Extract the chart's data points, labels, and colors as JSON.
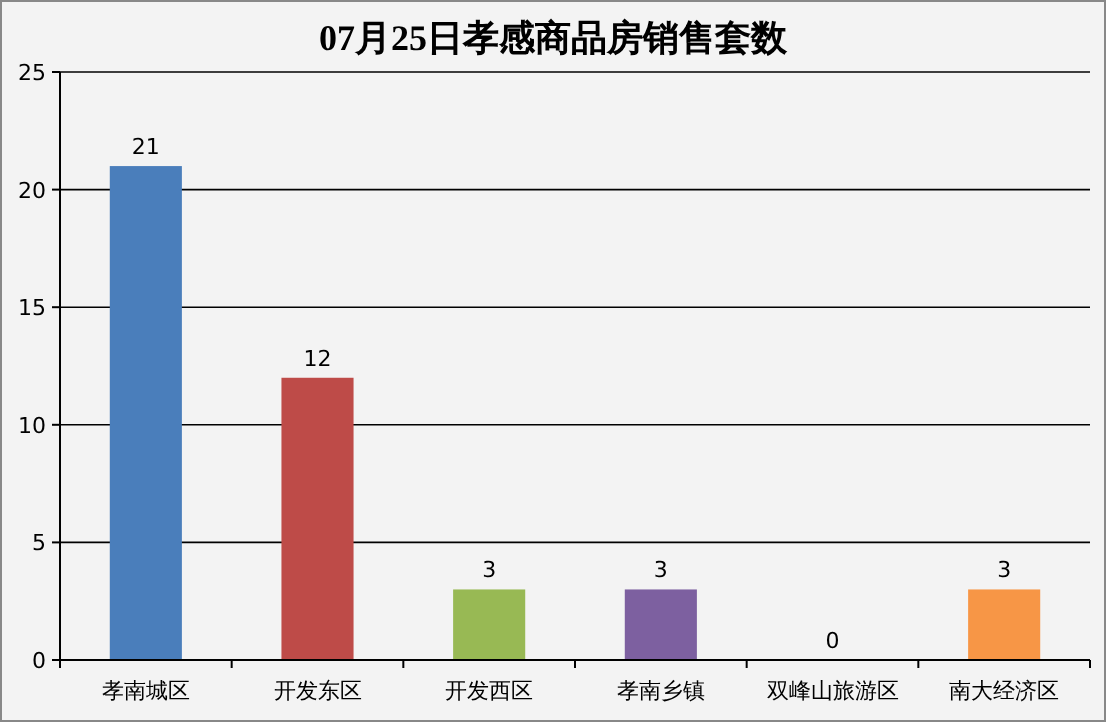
{
  "chart_data": {
    "type": "bar",
    "title": "07月25日孝感商品房销售套数",
    "categories": [
      "孝南城区",
      "开发东区",
      "开发西区",
      "孝南乡镇",
      "双峰山旅游区",
      "南大经济区"
    ],
    "values": [
      21,
      12,
      3,
      3,
      0,
      3
    ],
    "colors": [
      "#4a7ebb",
      "#be4b48",
      "#98b954",
      "#7d60a0",
      "#4bacc6",
      "#f79646"
    ],
    "ylim": [
      0,
      25
    ],
    "yticks": [
      0,
      5,
      10,
      15,
      20,
      25
    ],
    "grid": "y",
    "data_labels": true
  }
}
